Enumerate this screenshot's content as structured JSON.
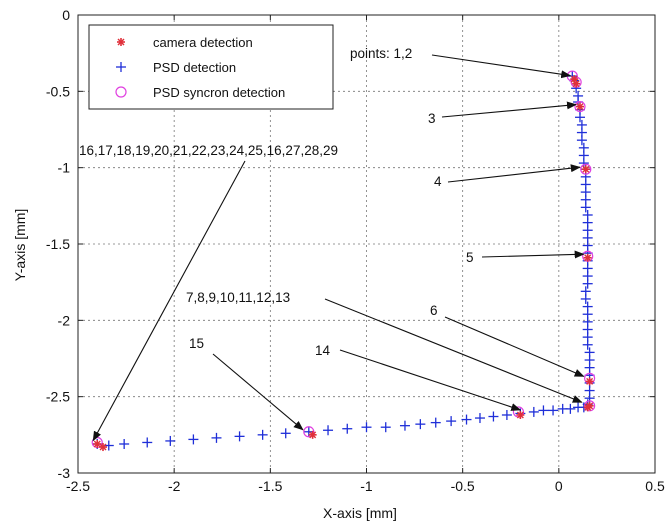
{
  "chart_data": {
    "type": "scatter",
    "title": "",
    "xlabel": "X-axis [mm]",
    "ylabel": "Y-axis [mm]",
    "xlim": [
      -2.5,
      0.5
    ],
    "ylim": [
      -3,
      0
    ],
    "x_ticks": [
      -2.5,
      -2,
      -1.5,
      -1,
      -0.5,
      0,
      0.5
    ],
    "y_ticks": [
      0,
      -0.5,
      -1,
      -1.5,
      -2,
      -2.5,
      -3
    ],
    "x_tick_labels": [
      "-2.5",
      "-2",
      "-1.5",
      "-1",
      "-0.5",
      "0",
      "0.5"
    ],
    "y_tick_labels": [
      "0",
      "-0.5",
      "-1",
      "-1.5",
      "-2",
      "-2.5",
      "-3"
    ],
    "grid": true,
    "legend_position": "top-left",
    "colors": {
      "camera": "#e0303a",
      "psd": "#1f2fd8",
      "sync": "#e040e0"
    },
    "series": [
      {
        "name": "camera detection",
        "marker": "*",
        "points": [
          [
            0.08,
            -0.42
          ],
          [
            0.09,
            -0.45
          ],
          [
            0.11,
            -0.6
          ],
          [
            0.14,
            -1.01
          ],
          [
            0.15,
            -1.59
          ],
          [
            0.16,
            -2.4
          ],
          [
            0.16,
            -2.56
          ],
          [
            0.15,
            -2.57
          ],
          [
            -0.2,
            -2.62
          ],
          [
            -1.28,
            -2.75
          ],
          [
            -2.37,
            -2.83
          ],
          [
            -2.4,
            -2.81
          ]
        ]
      },
      {
        "name": "PSD detection",
        "marker": "+",
        "points": [
          [
            0.07,
            -0.4
          ],
          [
            0.08,
            -0.43
          ],
          [
            0.09,
            -0.48
          ],
          [
            0.1,
            -0.53
          ],
          [
            0.1,
            -0.57
          ],
          [
            0.11,
            -0.62
          ],
          [
            0.11,
            -0.67
          ],
          [
            0.12,
            -0.72
          ],
          [
            0.12,
            -0.77
          ],
          [
            0.12,
            -0.82
          ],
          [
            0.13,
            -0.87
          ],
          [
            0.13,
            -0.92
          ],
          [
            0.13,
            -0.97
          ],
          [
            0.14,
            -1.01
          ],
          [
            0.14,
            -1.06
          ],
          [
            0.14,
            -1.11
          ],
          [
            0.14,
            -1.16
          ],
          [
            0.14,
            -1.21
          ],
          [
            0.14,
            -1.26
          ],
          [
            0.15,
            -1.31
          ],
          [
            0.15,
            -1.36
          ],
          [
            0.15,
            -1.41
          ],
          [
            0.15,
            -1.46
          ],
          [
            0.15,
            -1.51
          ],
          [
            0.15,
            -1.56
          ],
          [
            0.15,
            -1.61
          ],
          [
            0.15,
            -1.66
          ],
          [
            0.15,
            -1.71
          ],
          [
            0.15,
            -1.76
          ],
          [
            0.14,
            -1.81
          ],
          [
            0.14,
            -1.86
          ],
          [
            0.15,
            -1.91
          ],
          [
            0.15,
            -1.96
          ],
          [
            0.15,
            -2.01
          ],
          [
            0.15,
            -2.06
          ],
          [
            0.15,
            -2.11
          ],
          [
            0.15,
            -2.16
          ],
          [
            0.16,
            -2.21
          ],
          [
            0.16,
            -2.26
          ],
          [
            0.16,
            -2.31
          ],
          [
            0.16,
            -2.36
          ],
          [
            0.16,
            -2.41
          ],
          [
            0.16,
            -2.46
          ],
          [
            0.16,
            -2.51
          ],
          [
            0.15,
            -2.55
          ],
          [
            0.13,
            -2.57
          ],
          [
            0.1,
            -2.57
          ],
          [
            0.06,
            -2.58
          ],
          [
            0.02,
            -2.58
          ],
          [
            -0.03,
            -2.59
          ],
          [
            -0.08,
            -2.59
          ],
          [
            -0.13,
            -2.6
          ],
          [
            -0.2,
            -2.61
          ],
          [
            -0.27,
            -2.62
          ],
          [
            -0.34,
            -2.63
          ],
          [
            -0.41,
            -2.64
          ],
          [
            -0.48,
            -2.65
          ],
          [
            -0.56,
            -2.66
          ],
          [
            -0.64,
            -2.67
          ],
          [
            -0.72,
            -2.68
          ],
          [
            -0.8,
            -2.69
          ],
          [
            -0.9,
            -2.7
          ],
          [
            -1.0,
            -2.7
          ],
          [
            -1.1,
            -2.71
          ],
          [
            -1.2,
            -2.72
          ],
          [
            -1.3,
            -2.73
          ],
          [
            -1.42,
            -2.74
          ],
          [
            -1.54,
            -2.75
          ],
          [
            -1.66,
            -2.76
          ],
          [
            -1.78,
            -2.77
          ],
          [
            -1.9,
            -2.78
          ],
          [
            -2.02,
            -2.79
          ],
          [
            -2.14,
            -2.8
          ],
          [
            -2.26,
            -2.81
          ],
          [
            -2.34,
            -2.82
          ],
          [
            -2.4,
            -2.81
          ]
        ]
      },
      {
        "name": "PSD syncron detection",
        "marker": "o",
        "points": [
          [
            0.07,
            -0.4
          ],
          [
            0.09,
            -0.44
          ],
          [
            0.11,
            -0.6
          ],
          [
            0.14,
            -1.01
          ],
          [
            0.15,
            -1.58
          ],
          [
            0.16,
            -2.38
          ],
          [
            0.16,
            -2.56
          ],
          [
            -0.21,
            -2.6
          ],
          [
            -1.3,
            -2.73
          ],
          [
            -2.4,
            -2.8
          ]
        ]
      }
    ],
    "annotations": [
      {
        "text": "points: 1,2",
        "target": [
          0.08,
          -0.41
        ]
      },
      {
        "text": "3",
        "target": [
          0.11,
          -0.6
        ]
      },
      {
        "text": "4",
        "target": [
          0.13,
          -1.01
        ]
      },
      {
        "text": "5",
        "target": [
          0.15,
          -1.58
        ]
      },
      {
        "text": "6",
        "target": [
          0.15,
          -2.38
        ]
      },
      {
        "text": "7,8,9,10,11,12,13",
        "target": [
          0.14,
          -2.55
        ]
      },
      {
        "text": "14",
        "target": [
          -0.18,
          -2.6
        ]
      },
      {
        "text": "15",
        "target": [
          -1.31,
          -2.73
        ]
      },
      {
        "text": "16,17,18,19,20,21,22,23,24,25,16,27,28,29",
        "target": [
          -2.4,
          -2.8
        ]
      }
    ]
  }
}
